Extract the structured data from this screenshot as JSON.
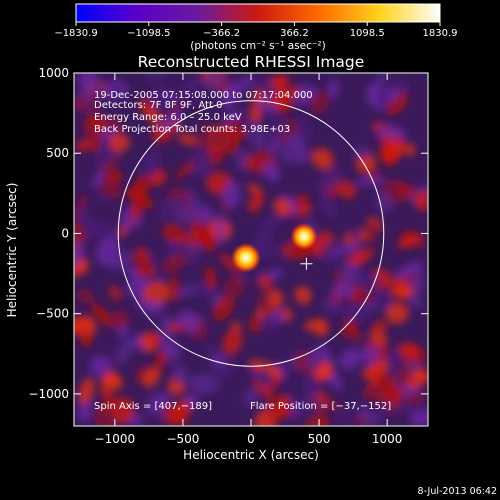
{
  "chart_data": {
    "type": "heatmap",
    "title": "Reconstructed RHESSI Image",
    "xlabel": "Heliocentric X (arcsec)",
    "ylabel": "Heliocentric Y (arcsec)",
    "xlim": [
      -1300,
      1300
    ],
    "ylim": [
      -1200,
      1000
    ],
    "x_ticks": [
      -1000,
      -500,
      0,
      500,
      1000
    ],
    "y_ticks": [
      -1000,
      -500,
      0,
      500,
      1000
    ],
    "x_tick_labels": [
      "−1000",
      "−500",
      "0",
      "500",
      "1000"
    ],
    "y_tick_labels": [
      "−1000",
      "−500",
      "0",
      "500",
      "1000"
    ],
    "colorbar": {
      "range": [
        -1830.9,
        1830.9
      ],
      "ticks": [
        "−1830.9",
        "−1098.5",
        "−366.2",
        "366.2",
        "1098.5",
        "1830.9"
      ],
      "colors": [
        "#0000ff",
        "#5a00c8",
        "#6a1aa0",
        "#cc1a10",
        "#ff6a00",
        "#ffd21a",
        "#ffffff"
      ]
    },
    "units_line": "(photons cm⁻² s⁻¹ asec⁻²)",
    "info": [
      "19-Dec-2005 07:15:08.000 to 07:17:04.000",
      "Detectors: 7F 8F 9F, Att 0",
      "Energy Range: 6.0 – 25.0 keV",
      "Back Projection    Total counts: 3.98E+03"
    ],
    "spin_axis": "Spin Axis = [407,−189]",
    "flare_position_label": "Flare Position = [−37,−152]",
    "sources": [
      {
        "x": -37,
        "y": -152,
        "peak": 1830.9
      },
      {
        "x": 390,
        "y": -20,
        "peak": 1500
      }
    ],
    "crosshair": {
      "x": 407,
      "y": -189
    },
    "solar_limb_radius": 975,
    "footer_date": "8-Jul-2013 06:42"
  }
}
